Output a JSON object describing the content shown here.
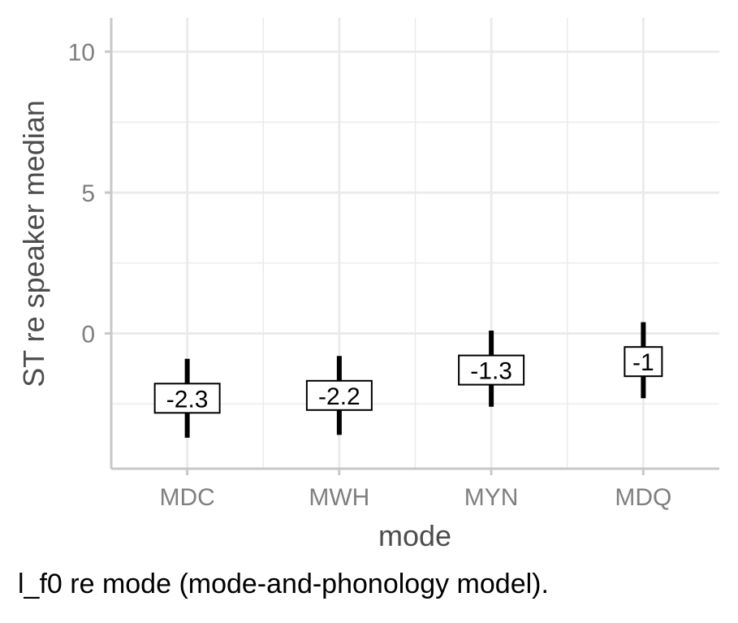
{
  "chart_data": {
    "type": "errorbar",
    "xlabel": "mode",
    "ylabel": "ST re speaker median",
    "categories": [
      "MDC",
      "MWH",
      "MYN",
      "MDQ"
    ],
    "series": [
      {
        "estimate": [
          -2.3,
          -2.2,
          -1.3,
          -1.0
        ],
        "lower": [
          -3.7,
          -3.6,
          -2.6,
          -2.3
        ],
        "upper": [
          -0.9,
          -0.8,
          0.1,
          0.4
        ],
        "labels": [
          "-2.3",
          "-2.2",
          "-1.3",
          "-1"
        ]
      }
    ],
    "ylim": [
      -4.8,
      11.2
    ],
    "yticks": [
      0,
      5,
      10
    ],
    "grid": true,
    "colors": {
      "bar": "#000000",
      "grid": "#ebebeb",
      "axis": "#c8c8c8",
      "tick_text": "#7f7f7f",
      "title_text": "#4d4d4d"
    }
  },
  "caption": "l_f0 re mode (mode-and-phonology model)."
}
